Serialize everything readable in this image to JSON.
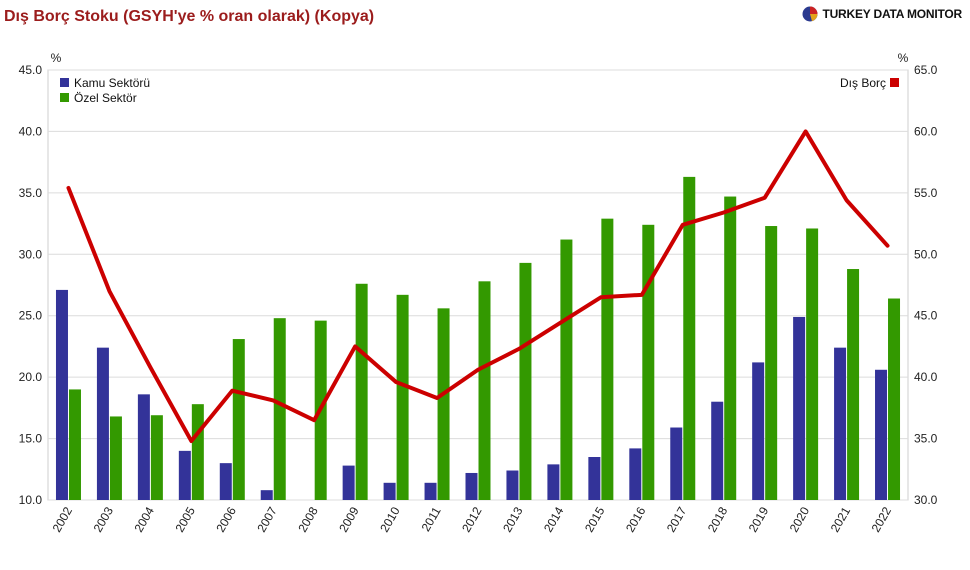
{
  "header": {
    "title": "Dış Borç Stoku (GSYH'ye % oran olarak) (Kopya)",
    "brand": "TURKEY DATA MONITOR"
  },
  "chart_data": {
    "type": "bar",
    "title": "Dış Borç Stoku (GSYH'ye % oran olarak) (Kopya)",
    "categories": [
      "2002",
      "2003",
      "2004",
      "2005",
      "2006",
      "2007",
      "2008",
      "2009",
      "2010",
      "2011",
      "2012",
      "2013",
      "2014",
      "2015",
      "2016",
      "2017",
      "2018",
      "2019",
      "2020",
      "2021",
      "2022"
    ],
    "left_axis": {
      "unit": "%",
      "ylim": [
        10,
        45
      ],
      "ticks": [
        "10.0",
        "15.0",
        "20.0",
        "25.0",
        "30.0",
        "35.0",
        "40.0",
        "45.0"
      ]
    },
    "right_axis": {
      "unit": "%",
      "ylim": [
        30,
        65
      ],
      "ticks": [
        "30.0",
        "35.0",
        "40.0",
        "45.0",
        "50.0",
        "55.0",
        "60.0",
        "65.0"
      ]
    },
    "grid": true,
    "legend_left": "top-left",
    "legend_right": "top-right",
    "series": [
      {
        "name": "Kamu Sektörü",
        "type": "bar",
        "axis": "left",
        "color": "#333399",
        "values": [
          27.1,
          22.4,
          18.6,
          14.0,
          13.0,
          10.8,
          9.5,
          12.8,
          11.4,
          11.4,
          12.2,
          12.4,
          12.9,
          13.5,
          14.2,
          15.9,
          18.0,
          21.2,
          24.9,
          22.4,
          20.6
        ]
      },
      {
        "name": "Özel Sektör",
        "type": "bar",
        "axis": "left",
        "color": "#339900",
        "values": [
          19.0,
          16.8,
          16.9,
          17.8,
          23.1,
          24.8,
          24.6,
          27.6,
          26.7,
          25.6,
          27.8,
          29.3,
          31.2,
          32.9,
          32.4,
          36.3,
          34.7,
          32.3,
          32.1,
          28.8,
          26.4
        ]
      },
      {
        "name": "Dış Borç",
        "type": "line",
        "axis": "right",
        "color": "#cc0000",
        "values": [
          55.4,
          47.0,
          40.8,
          34.8,
          38.9,
          38.1,
          36.5,
          42.5,
          39.6,
          38.3,
          40.6,
          42.3,
          44.4,
          46.5,
          46.7,
          52.4,
          53.4,
          54.6,
          60.0,
          54.4,
          50.7
        ]
      }
    ]
  }
}
